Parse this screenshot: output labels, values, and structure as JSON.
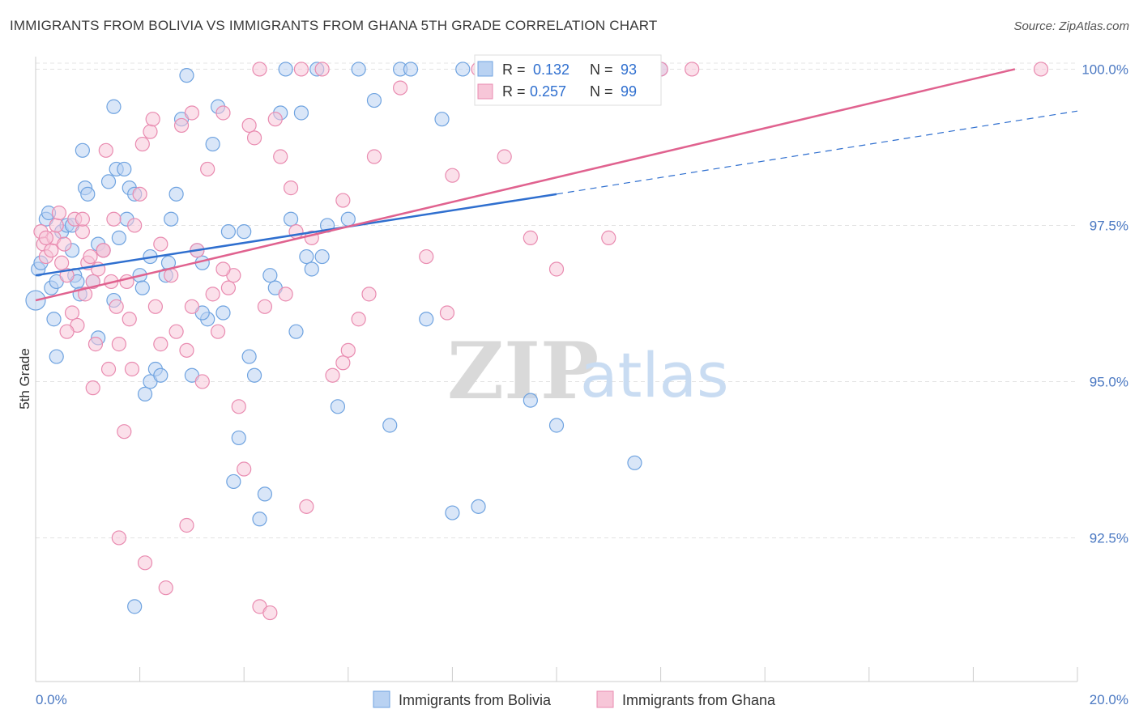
{
  "title": "IMMIGRANTS FROM BOLIVIA VS IMMIGRANTS FROM GHANA 5TH GRADE CORRELATION CHART",
  "source": "Source: ZipAtlas.com",
  "watermark": {
    "zip": "ZIP",
    "atlas": "atlas"
  },
  "chart_data": {
    "type": "scatter",
    "ylabel": "5th Grade",
    "xlim": [
      0.0,
      20.0
    ],
    "ylim": [
      90.2,
      100.2
    ],
    "x_tick_labels": [
      "0.0%",
      "20.0%"
    ],
    "y_ticks": [
      100.0,
      97.5,
      95.0,
      92.5
    ],
    "y_tick_labels": [
      "100.0%",
      "97.5%",
      "95.0%",
      "92.5%"
    ],
    "grid": true,
    "legend": {
      "placement": "top-center",
      "entries": [
        {
          "r_label": "R =",
          "r_value": "0.132",
          "n_label": "N =",
          "n_value": "93"
        },
        {
          "r_label": "R =",
          "r_value": "0.257",
          "n_label": "N =",
          "n_value": "99"
        }
      ]
    },
    "series": [
      {
        "name": "Immigrants from Bolivia",
        "color": "#6fa3e0",
        "fill": "#b9d2f2",
        "trend_color": "#2f6fcf",
        "trend": {
          "x0": 0.0,
          "y0": 96.7,
          "x1": 10.0,
          "y1": 98.0,
          "dash_to_x": 20.0,
          "dash_to_y": 99.33
        },
        "points": [
          [
            0.0,
            96.3
          ],
          [
            0.05,
            96.8
          ],
          [
            0.1,
            96.9
          ],
          [
            0.2,
            97.6
          ],
          [
            0.25,
            97.7
          ],
          [
            0.3,
            96.5
          ],
          [
            0.35,
            96.0
          ],
          [
            0.4,
            96.6
          ],
          [
            0.5,
            97.4
          ],
          [
            0.6,
            97.5
          ],
          [
            0.7,
            97.5
          ],
          [
            0.75,
            96.7
          ],
          [
            0.8,
            96.6
          ],
          [
            0.85,
            96.4
          ],
          [
            0.9,
            98.7
          ],
          [
            0.95,
            98.1
          ],
          [
            1.0,
            98.0
          ],
          [
            1.1,
            96.6
          ],
          [
            1.2,
            97.2
          ],
          [
            1.3,
            97.1
          ],
          [
            1.4,
            98.2
          ],
          [
            1.5,
            99.4
          ],
          [
            1.55,
            98.4
          ],
          [
            1.6,
            97.3
          ],
          [
            1.7,
            98.4
          ],
          [
            1.75,
            97.6
          ],
          [
            1.8,
            98.1
          ],
          [
            1.9,
            98.0
          ],
          [
            2.0,
            96.7
          ],
          [
            2.05,
            96.5
          ],
          [
            2.1,
            94.8
          ],
          [
            2.2,
            95.0
          ],
          [
            2.3,
            95.2
          ],
          [
            2.4,
            95.1
          ],
          [
            2.5,
            96.7
          ],
          [
            2.55,
            96.9
          ],
          [
            2.6,
            97.6
          ],
          [
            2.7,
            98.0
          ],
          [
            2.8,
            99.2
          ],
          [
            2.9,
            99.9
          ],
          [
            3.0,
            95.1
          ],
          [
            3.1,
            97.1
          ],
          [
            3.2,
            96.9
          ],
          [
            3.3,
            96.0
          ],
          [
            3.4,
            98.8
          ],
          [
            3.5,
            99.4
          ],
          [
            3.6,
            96.1
          ],
          [
            3.7,
            97.4
          ],
          [
            3.8,
            93.4
          ],
          [
            3.9,
            94.1
          ],
          [
            4.0,
            97.4
          ],
          [
            4.1,
            95.4
          ],
          [
            4.2,
            95.1
          ],
          [
            4.3,
            92.8
          ],
          [
            4.4,
            93.2
          ],
          [
            4.5,
            96.7
          ],
          [
            4.6,
            96.5
          ],
          [
            4.7,
            99.3
          ],
          [
            4.8,
            100.0
          ],
          [
            4.9,
            97.6
          ],
          [
            5.0,
            95.8
          ],
          [
            5.1,
            99.3
          ],
          [
            5.2,
            97.0
          ],
          [
            5.3,
            96.8
          ],
          [
            5.4,
            100.0
          ],
          [
            5.6,
            97.5
          ],
          [
            5.8,
            94.6
          ],
          [
            6.0,
            97.6
          ],
          [
            6.2,
            100.0
          ],
          [
            6.5,
            99.5
          ],
          [
            6.8,
            94.3
          ],
          [
            7.0,
            100.0
          ],
          [
            7.2,
            100.0
          ],
          [
            7.5,
            96.0
          ],
          [
            7.8,
            99.2
          ],
          [
            8.0,
            92.9
          ],
          [
            8.2,
            100.0
          ],
          [
            8.5,
            93.0
          ],
          [
            9.0,
            100.0
          ],
          [
            9.5,
            94.7
          ],
          [
            10.0,
            94.3
          ],
          [
            10.5,
            100.0
          ],
          [
            11.0,
            99.8
          ],
          [
            11.5,
            93.7
          ],
          [
            12.0,
            100.0
          ],
          [
            1.2,
            95.7
          ],
          [
            1.5,
            96.3
          ],
          [
            0.7,
            97.1
          ],
          [
            2.2,
            97.0
          ],
          [
            3.2,
            96.1
          ],
          [
            5.5,
            97.0
          ],
          [
            0.4,
            95.4
          ],
          [
            1.9,
            91.4
          ]
        ]
      },
      {
        "name": "Immigrants from Ghana",
        "color": "#e98bb0",
        "fill": "#f7c6d8",
        "trend_color": "#e0628f",
        "trend": {
          "x0": 0.0,
          "y0": 96.3,
          "x1": 18.8,
          "y1": 100.0
        },
        "points": [
          [
            0.1,
            97.4
          ],
          [
            0.15,
            97.2
          ],
          [
            0.2,
            97.0
          ],
          [
            0.3,
            97.1
          ],
          [
            0.35,
            97.3
          ],
          [
            0.4,
            97.5
          ],
          [
            0.45,
            97.7
          ],
          [
            0.5,
            96.9
          ],
          [
            0.55,
            97.2
          ],
          [
            0.6,
            96.7
          ],
          [
            0.7,
            96.1
          ],
          [
            0.75,
            97.6
          ],
          [
            0.8,
            95.9
          ],
          [
            0.9,
            97.4
          ],
          [
            0.95,
            96.4
          ],
          [
            1.0,
            96.9
          ],
          [
            1.05,
            97.0
          ],
          [
            1.1,
            94.9
          ],
          [
            1.15,
            95.6
          ],
          [
            1.2,
            96.8
          ],
          [
            1.3,
            97.1
          ],
          [
            1.35,
            98.7
          ],
          [
            1.4,
            95.2
          ],
          [
            1.45,
            96.6
          ],
          [
            1.5,
            97.6
          ],
          [
            1.55,
            96.2
          ],
          [
            1.6,
            95.6
          ],
          [
            1.7,
            94.2
          ],
          [
            1.75,
            96.6
          ],
          [
            1.8,
            96.0
          ],
          [
            1.85,
            95.2
          ],
          [
            1.9,
            97.5
          ],
          [
            2.0,
            98.0
          ],
          [
            2.05,
            98.8
          ],
          [
            2.1,
            92.1
          ],
          [
            2.2,
            99.0
          ],
          [
            2.25,
            99.2
          ],
          [
            2.3,
            96.2
          ],
          [
            2.4,
            95.6
          ],
          [
            2.5,
            91.7
          ],
          [
            2.6,
            96.7
          ],
          [
            2.7,
            95.8
          ],
          [
            2.8,
            99.1
          ],
          [
            2.9,
            92.7
          ],
          [
            3.0,
            96.2
          ],
          [
            3.1,
            97.1
          ],
          [
            3.2,
            95.0
          ],
          [
            3.3,
            98.4
          ],
          [
            3.4,
            96.4
          ],
          [
            3.5,
            95.8
          ],
          [
            3.6,
            99.3
          ],
          [
            3.7,
            96.5
          ],
          [
            3.8,
            96.7
          ],
          [
            3.9,
            94.6
          ],
          [
            4.0,
            93.6
          ],
          [
            4.1,
            99.1
          ],
          [
            4.2,
            98.9
          ],
          [
            4.3,
            91.4
          ],
          [
            4.4,
            96.2
          ],
          [
            4.5,
            91.3
          ],
          [
            4.6,
            99.2
          ],
          [
            4.7,
            98.6
          ],
          [
            4.8,
            96.4
          ],
          [
            4.9,
            98.1
          ],
          [
            5.0,
            97.4
          ],
          [
            5.1,
            100.0
          ],
          [
            5.2,
            93.0
          ],
          [
            5.3,
            97.3
          ],
          [
            5.5,
            100.0
          ],
          [
            5.7,
            95.1
          ],
          [
            5.9,
            95.3
          ],
          [
            6.0,
            95.5
          ],
          [
            6.2,
            96.0
          ],
          [
            6.5,
            98.6
          ],
          [
            7.0,
            99.7
          ],
          [
            7.5,
            97.0
          ],
          [
            8.0,
            98.3
          ],
          [
            8.5,
            100.0
          ],
          [
            9.0,
            98.6
          ],
          [
            9.5,
            97.3
          ],
          [
            10.0,
            96.8
          ],
          [
            11.0,
            97.3
          ],
          [
            12.0,
            100.0
          ],
          [
            12.6,
            100.0
          ],
          [
            19.3,
            100.0
          ],
          [
            1.6,
            92.5
          ],
          [
            0.2,
            97.3
          ],
          [
            0.9,
            97.6
          ],
          [
            1.3,
            97.1
          ],
          [
            2.4,
            97.2
          ],
          [
            3.6,
            96.8
          ],
          [
            5.9,
            97.9
          ],
          [
            4.3,
            100.0
          ],
          [
            3.0,
            99.3
          ],
          [
            6.4,
            96.4
          ],
          [
            7.9,
            96.1
          ],
          [
            2.9,
            95.5
          ],
          [
            1.1,
            96.6
          ],
          [
            0.6,
            95.8
          ]
        ]
      }
    ]
  }
}
